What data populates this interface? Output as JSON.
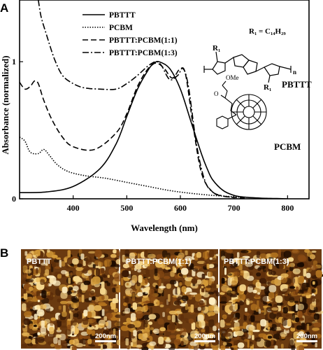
{
  "panels": {
    "a": "A",
    "b": "B"
  },
  "chart_data": {
    "type": "line",
    "title": "",
    "xlabel": "Wavelength (nm)",
    "ylabel": "Absorbance (normalized)",
    "xlim": [
      300,
      840
    ],
    "ylim": [
      0,
      1.45
    ],
    "xticks": [
      "400",
      "500",
      "600",
      "700",
      "800"
    ],
    "yticks": [
      "0",
      "1"
    ],
    "grid": false,
    "legend_position": "top-left",
    "series": [
      {
        "name": "PBTTT",
        "style": "solid",
        "x": [
          300,
          350,
          400,
          450,
          480,
          500,
          520,
          540,
          550,
          560,
          580,
          600,
          620,
          640,
          650,
          660,
          680,
          700,
          720,
          750,
          780,
          800
        ],
        "y": [
          0.045,
          0.05,
          0.09,
          0.22,
          0.4,
          0.6,
          0.8,
          0.94,
          0.985,
          1.0,
          0.95,
          0.8,
          0.56,
          0.32,
          0.22,
          0.14,
          0.06,
          0.025,
          0.012,
          0.005,
          0.002,
          0.0
        ]
      },
      {
        "name": "PCBM",
        "style": "dotted",
        "x": [
          300,
          310,
          320,
          335,
          345,
          355,
          370,
          390,
          420,
          460,
          500,
          540,
          580,
          620,
          660,
          700,
          720
        ],
        "y": [
          0.45,
          0.42,
          0.34,
          0.33,
          0.36,
          0.32,
          0.25,
          0.2,
          0.17,
          0.15,
          0.12,
          0.09,
          0.06,
          0.04,
          0.025,
          0.015,
          0.01
        ]
      },
      {
        "name": "PBTTT:PCBM(1:1)",
        "style": "dashed",
        "x": [
          300,
          310,
          320,
          328,
          335,
          345,
          360,
          380,
          400,
          440,
          480,
          500,
          520,
          540,
          555,
          570,
          585,
          600,
          610,
          625,
          640,
          660,
          680,
          700,
          720
        ],
        "y": [
          0.85,
          0.8,
          0.82,
          0.86,
          0.84,
          0.72,
          0.58,
          0.45,
          0.38,
          0.36,
          0.48,
          0.62,
          0.82,
          0.95,
          0.99,
          0.95,
          0.88,
          0.95,
          0.9,
          0.5,
          0.18,
          0.05,
          0.02,
          0.01,
          0.005
        ]
      },
      {
        "name": "PBTTT:PCBM(1:3)",
        "style": "dashdot",
        "x": [
          335,
          340,
          350,
          365,
          380,
          400,
          420,
          450,
          480,
          500,
          520,
          540,
          555,
          565,
          580,
          595,
          605,
          615,
          630,
          645,
          660,
          680,
          700
        ],
        "y": [
          1.45,
          1.33,
          1.2,
          1.02,
          0.9,
          0.84,
          0.81,
          0.8,
          0.8,
          0.84,
          0.9,
          0.97,
          1.0,
          0.97,
          0.87,
          0.9,
          0.95,
          0.82,
          0.4,
          0.14,
          0.05,
          0.02,
          0.01
        ]
      }
    ]
  },
  "structures": {
    "r1_label": "R₁",
    "r1_definition": "R₁ = C₁₄H₂₉",
    "subscript_n": "n",
    "pbttt_label": "PBTTT",
    "pcbm_label": "PCBM",
    "ome_label": "OMe",
    "carbonyl_o": "O"
  },
  "afm_images": [
    {
      "label": "PBTTT",
      "scale": "200nm",
      "seed": 7
    },
    {
      "label": "PBTTT:PCBM(1:1)",
      "scale": "200nm",
      "seed": 19
    },
    {
      "label": "PBTTT:PCBM(1:3)",
      "scale": "200nm",
      "seed": 31
    }
  ]
}
